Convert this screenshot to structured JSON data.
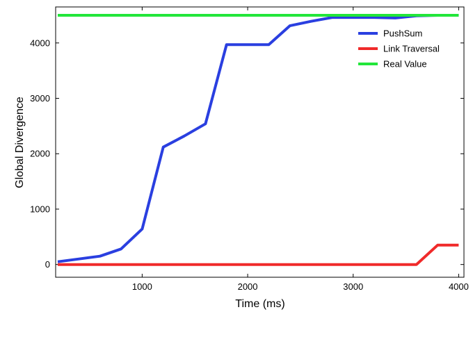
{
  "chart_data": {
    "type": "line",
    "title": "",
    "xlabel": "Time (ms)",
    "ylabel": "Global Divergence",
    "xlim": [
      180,
      4050
    ],
    "ylim": [
      -230,
      4650
    ],
    "xticks": [
      1000,
      2000,
      3000,
      4000
    ],
    "yticks": [
      0,
      1000,
      2000,
      3000,
      4000
    ],
    "grid": false,
    "legend_position": "top-right",
    "series": [
      {
        "name": "PushSum",
        "color": "#2a3fe0",
        "x": [
          200,
          400,
          600,
          800,
          1000,
          1200,
          1400,
          1600,
          1800,
          2000,
          2200,
          2400,
          2600,
          2800,
          3000,
          3200,
          3400,
          3600,
          3800,
          4000
        ],
        "y": [
          50,
          100,
          150,
          280,
          640,
          2120,
          2320,
          2540,
          3970,
          3970,
          3970,
          4310,
          4390,
          4460,
          4460,
          4460,
          4450,
          4490,
          4500,
          4500
        ]
      },
      {
        "name": "Link Traversal",
        "color": "#f02a2a",
        "x": [
          200,
          3600,
          3800,
          4000
        ],
        "y": [
          0,
          0,
          350,
          350
        ]
      },
      {
        "name": "Real Value",
        "color": "#22e63a",
        "x": [
          200,
          4000
        ],
        "y": [
          4500,
          4500
        ]
      }
    ]
  }
}
